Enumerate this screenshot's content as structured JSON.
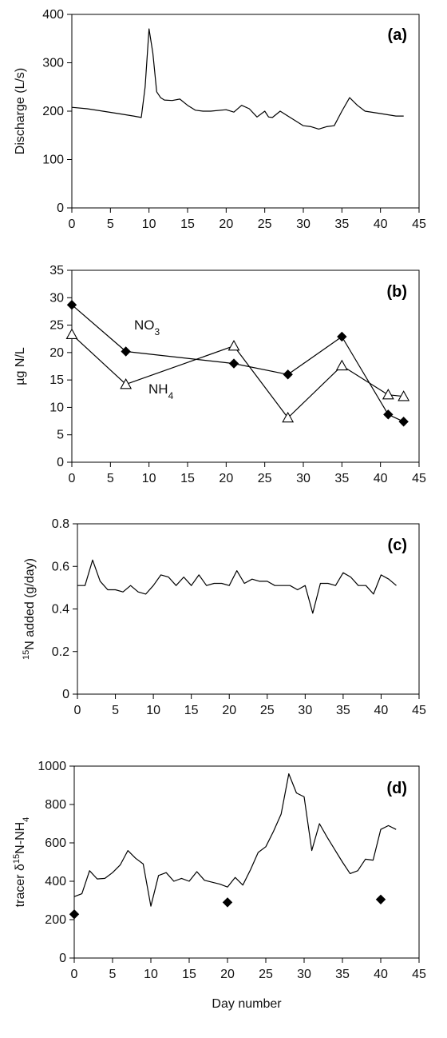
{
  "figure": {
    "xlabel": "Day number"
  },
  "chart_data": [
    {
      "panel": "(a)",
      "type": "line",
      "ylabel": "Discharge (L/s)",
      "xlim": [
        0,
        45
      ],
      "ylim": [
        0,
        400
      ],
      "xticks": [
        0,
        5,
        10,
        15,
        20,
        25,
        30,
        35,
        40,
        45
      ],
      "yticks": [
        0,
        100,
        200,
        300,
        400
      ],
      "grid": false,
      "series": [
        {
          "style": "line",
          "x": [
            0,
            2,
            4,
            6,
            8,
            9,
            9.5,
            10,
            10.5,
            11,
            11.5,
            12,
            13,
            14,
            15,
            16,
            17,
            18,
            20,
            21,
            22,
            23,
            24,
            25,
            25.5,
            26,
            27,
            28,
            29,
            30,
            31,
            32,
            33,
            34,
            35,
            36,
            37,
            38,
            40,
            42,
            43
          ],
          "y": [
            208,
            205,
            200,
            195,
            190,
            187,
            250,
            370,
            320,
            240,
            228,
            223,
            222,
            225,
            212,
            202,
            200,
            200,
            203,
            198,
            212,
            205,
            188,
            200,
            188,
            187,
            200,
            190,
            180,
            170,
            168,
            163,
            168,
            170,
            200,
            228,
            212,
            200,
            195,
            190,
            190
          ]
        }
      ]
    },
    {
      "panel": "(b)",
      "type": "line",
      "ylabel": "µg N/L",
      "xlim": [
        0,
        45
      ],
      "ylim": [
        0,
        35
      ],
      "xticks": [
        0,
        5,
        10,
        15,
        20,
        25,
        30,
        35,
        40,
        45
      ],
      "yticks": [
        0,
        5,
        10,
        15,
        20,
        25,
        30,
        35
      ],
      "grid": false,
      "annotations": [
        {
          "base": "NO",
          "sub": "3"
        },
        {
          "base": "NH",
          "sub": "4"
        }
      ],
      "series": [
        {
          "name": "NO3",
          "marker": "filled-diamond",
          "x": [
            0,
            7,
            21,
            28,
            35,
            41,
            43
          ],
          "y": [
            28.7,
            20.2,
            18,
            16,
            22.9,
            8.7,
            7.4
          ]
        },
        {
          "name": "NH4",
          "marker": "open-triangle",
          "x": [
            0,
            7,
            21,
            28,
            35,
            41,
            43
          ],
          "y": [
            23.3,
            14.2,
            21.2,
            8.1,
            17.6,
            12.3,
            12.0
          ]
        }
      ]
    },
    {
      "panel": "(c)",
      "type": "line",
      "ylabel_parts": {
        "sup": "15",
        "rest": "N added (g/day)"
      },
      "xlim": [
        0,
        45
      ],
      "ylim": [
        0,
        0.8
      ],
      "xticks": [
        0,
        5,
        10,
        15,
        20,
        25,
        30,
        35,
        40,
        45
      ],
      "yticks": [
        0,
        0.2,
        0.4,
        0.6,
        0.8
      ],
      "grid": false,
      "series": [
        {
          "style": "line",
          "x": [
            0,
            1,
            2,
            3,
            4,
            5,
            6,
            7,
            8,
            9,
            10,
            11,
            12,
            13,
            14,
            15,
            16,
            17,
            18,
            19,
            20,
            21,
            22,
            23,
            24,
            25,
            26,
            27,
            28,
            29,
            30,
            31,
            32,
            33,
            34,
            35,
            36,
            37,
            38,
            39,
            40,
            41,
            42
          ],
          "y": [
            0.51,
            0.51,
            0.63,
            0.53,
            0.49,
            0.49,
            0.48,
            0.51,
            0.48,
            0.47,
            0.51,
            0.56,
            0.55,
            0.51,
            0.55,
            0.51,
            0.56,
            0.51,
            0.52,
            0.52,
            0.51,
            0.58,
            0.52,
            0.54,
            0.53,
            0.53,
            0.51,
            0.51,
            0.51,
            0.49,
            0.51,
            0.38,
            0.52,
            0.52,
            0.51,
            0.57,
            0.55,
            0.51,
            0.51,
            0.47,
            0.56,
            0.54,
            0.51
          ]
        }
      ]
    },
    {
      "panel": "(d)",
      "type": "line",
      "ylabel_parts": {
        "pre": "tracer δ",
        "sup": "15",
        "mid": "N-NH",
        "sub": "4"
      },
      "xlim": [
        0,
        45
      ],
      "ylim": [
        0,
        1000
      ],
      "xticks": [
        0,
        5,
        10,
        15,
        20,
        25,
        30,
        35,
        40,
        45
      ],
      "yticks": [
        0,
        200,
        400,
        600,
        800,
        1000
      ],
      "grid": false,
      "series": [
        {
          "style": "line",
          "x": [
            0,
            1,
            2,
            3,
            4,
            5,
            6,
            7,
            8,
            9,
            10,
            11,
            12,
            13,
            14,
            15,
            16,
            17,
            18,
            19,
            20,
            21,
            22,
            23,
            24,
            25,
            26,
            27,
            28,
            29,
            30,
            31,
            32,
            33,
            34,
            35,
            36,
            37,
            38,
            39,
            40,
            41,
            42
          ],
          "y": [
            320,
            335,
            455,
            412,
            415,
            445,
            485,
            560,
            520,
            490,
            270,
            430,
            445,
            400,
            415,
            400,
            450,
            405,
            395,
            385,
            370,
            420,
            380,
            460,
            550,
            580,
            660,
            750,
            960,
            860,
            840,
            560,
            700,
            630,
            565,
            500,
            440,
            455,
            515,
            510,
            670,
            690,
            670
          ]
        },
        {
          "style": "markers",
          "marker": "filled-diamond",
          "x": [
            0,
            20,
            40
          ],
          "y": [
            228,
            290,
            305
          ]
        }
      ]
    }
  ]
}
